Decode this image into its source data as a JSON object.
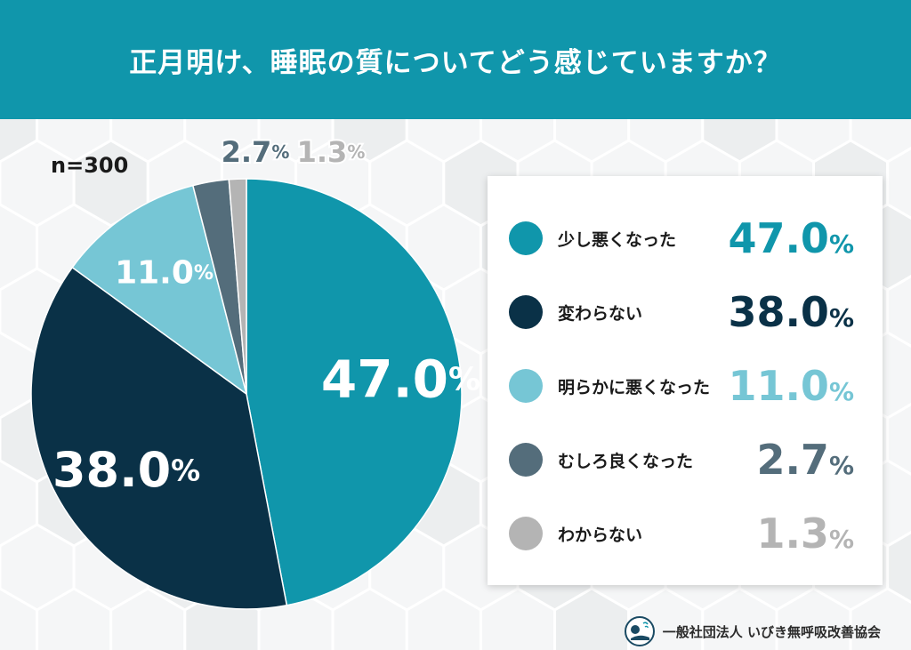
{
  "title": "正月明け、睡眠の質についてどう感じていますか？",
  "sample_size": "n=300",
  "footer": {
    "organization": "一般社団法人 いびき無呼吸改善協会",
    "logo_icon": "sleeping-person-logo-icon"
  },
  "colors": {
    "header": "#1096ab",
    "background": "#f3f4f5"
  },
  "chart_data": {
    "type": "pie",
    "title": "正月明け、睡眠の質についてどう感じていますか？",
    "unit": "%",
    "legend_position": "right",
    "slices": [
      {
        "label": "少し悪くなった",
        "value": 47.0,
        "display": "47.0",
        "color": "#1096ab"
      },
      {
        "label": "変わらない",
        "value": 38.0,
        "display": "38.0",
        "color": "#0a3147"
      },
      {
        "label": "明らかに悪くなった",
        "value": 11.0,
        "display": "11.0",
        "color": "#76c6d5"
      },
      {
        "label": "むしろ良くなった",
        "value": 2.7,
        "display": "2.7",
        "color": "#546d7b"
      },
      {
        "label": "わからない",
        "value": 1.3,
        "display": "1.3",
        "color": "#b4b4b4"
      }
    ]
  }
}
